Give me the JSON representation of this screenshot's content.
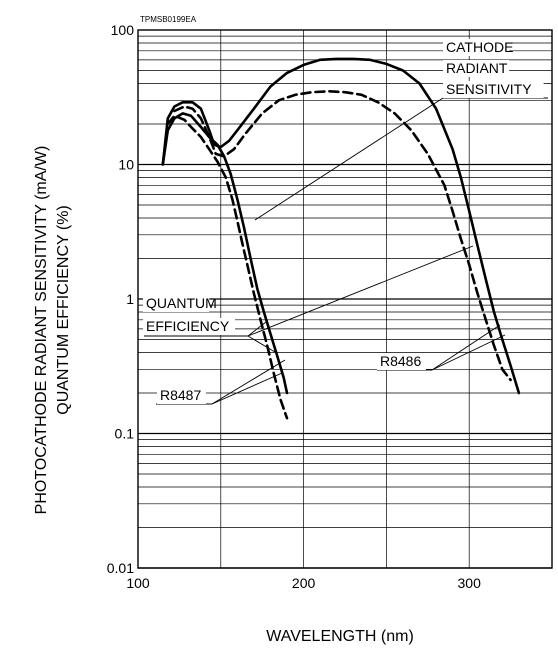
{
  "chart_data": {
    "type": "line",
    "figure_code": "TPMSB0199EA",
    "xlabel": "WAVELENGTH (nm)",
    "ylabel_lines": [
      "PHOTOCATHODE RADIANT SENSITIVITY (mA/W)",
      "QUANTUM EFFICIENCY (%)"
    ],
    "xlim": [
      100,
      350
    ],
    "ylim": [
      0.01,
      100
    ],
    "yscale": "log",
    "x_ticks": [
      100,
      200,
      300
    ],
    "y_ticks": [
      0.01,
      0.1,
      1,
      10,
      100
    ],
    "y_tick_labels": [
      "0.01",
      "0.1",
      "1",
      "10",
      "100"
    ],
    "grid": true,
    "series": [
      {
        "name": "R8487",
        "kind": "CATHODE RADIANT SENSITIVITY",
        "style": "solid",
        "x": [
          115,
          118,
          122,
          127,
          132,
          138,
          143,
          148,
          152,
          156,
          160,
          164,
          168,
          172,
          176,
          180,
          184,
          188,
          190
        ],
        "y": [
          10,
          18,
          22,
          24,
          23,
          19,
          16,
          14,
          11.5,
          8.5,
          5.5,
          3.4,
          2.0,
          1.2,
          0.8,
          0.55,
          0.38,
          0.26,
          0.2
        ]
      },
      {
        "name": "R8487",
        "kind": "QUANTUM EFFICIENCY",
        "style": "dashed",
        "x": [
          118,
          122,
          128,
          133,
          138,
          143,
          148,
          153,
          157,
          160,
          163,
          166,
          170,
          174,
          178,
          182,
          186,
          190
        ],
        "y": [
          20,
          23,
          21.5,
          18.5,
          16,
          13,
          10.5,
          8,
          5.5,
          3.8,
          2.6,
          1.8,
          1.1,
          0.7,
          0.45,
          0.28,
          0.18,
          0.13
        ]
      },
      {
        "name": "R8486",
        "kind": "CATHODE RADIANT SENSITIVITY",
        "style": "solid",
        "x": [
          115,
          118,
          122,
          127,
          133,
          138,
          143,
          146,
          150,
          155,
          160,
          170,
          180,
          190,
          200,
          210,
          220,
          230,
          240,
          250,
          260,
          270,
          280,
          290,
          295,
          300,
          305,
          310,
          315,
          320,
          325,
          330
        ],
        "y": [
          10,
          22,
          27,
          29,
          29,
          26,
          18,
          14,
          13.5,
          15,
          18,
          26,
          38,
          48,
          55,
          60,
          61,
          61,
          60,
          56,
          50,
          40,
          26,
          13,
          8,
          4.5,
          2.5,
          1.4,
          0.8,
          0.5,
          0.32,
          0.2
        ]
      },
      {
        "name": "R8486",
        "kind": "QUANTUM EFFICIENCY",
        "style": "dashed",
        "x": [
          122,
          128,
          133,
          138,
          143,
          147,
          152,
          158,
          165,
          175,
          185,
          195,
          205,
          215,
          225,
          235,
          245,
          255,
          265,
          275,
          285,
          290,
          295,
          300,
          305,
          310,
          315,
          320,
          325
        ],
        "y": [
          25,
          27,
          26,
          22,
          16,
          12,
          11.5,
          13,
          17,
          24,
          30,
          33,
          34.5,
          35,
          34.5,
          33,
          29,
          24,
          18,
          12,
          7,
          4.5,
          2.8,
          1.8,
          1.1,
          0.7,
          0.45,
          0.3,
          0.25
        ]
      }
    ],
    "annotations": {
      "cathode_sensitivity": [
        "CATHODE",
        "RADIANT",
        "SENSITIVITY"
      ],
      "quantum_efficiency": [
        "QUANTUM",
        "EFFICIENCY"
      ],
      "r8487": "R8487",
      "r8486": "R8486"
    }
  }
}
